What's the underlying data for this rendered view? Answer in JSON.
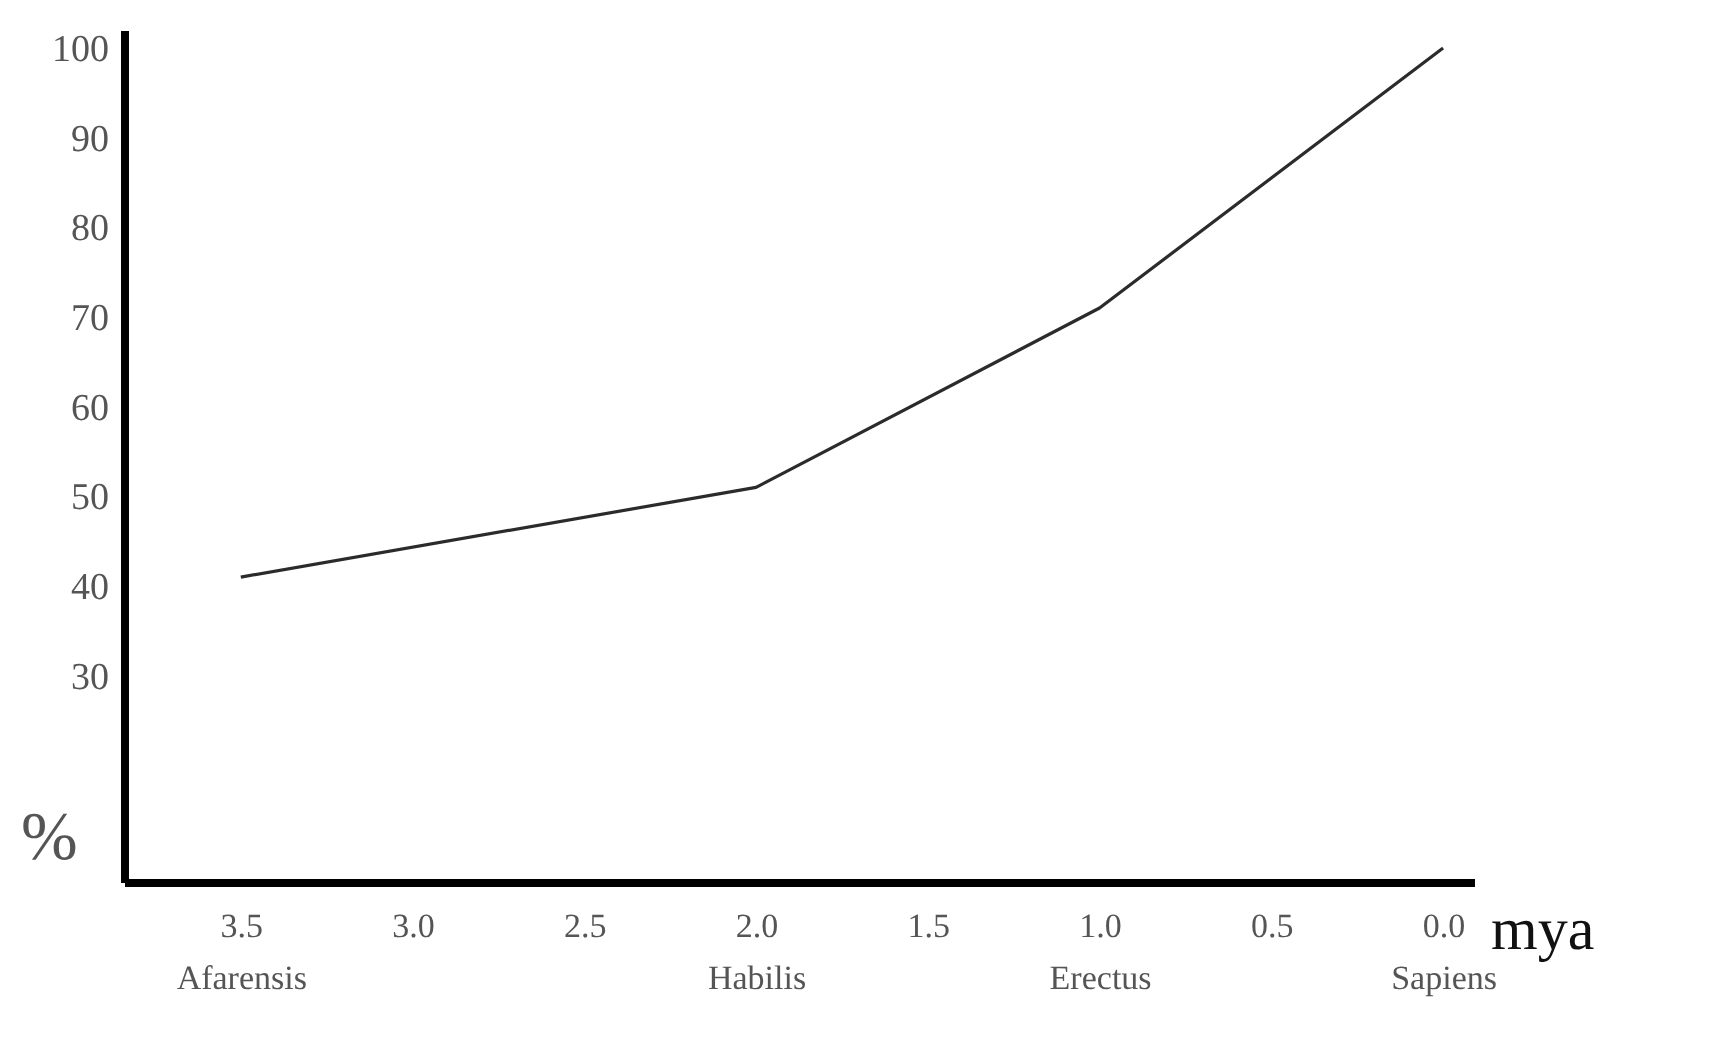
{
  "chart_data": {
    "type": "line",
    "xlabel": "mya",
    "ylabel": "%",
    "x": [
      3.5,
      2.0,
      1.0,
      0.0
    ],
    "series": [
      {
        "color": "#2b2b2b",
        "values": [
          41,
          51,
          71,
          100
        ]
      }
    ],
    "xlim": [
      3.84,
      -0.09
    ],
    "xticks": [
      {
        "value": 3.5,
        "label": "3.5\nAfarensis"
      },
      {
        "value": 3.0,
        "label": "3.0"
      },
      2.5,
      {
        "value": 2.0,
        "label": "2.0\nHabilis"
      },
      1.5,
      {
        "value": 1.0,
        "label": "1.0\nErectus"
      },
      0.5,
      {
        "value": 0.0,
        "label": "0.0\nSapiens"
      }
    ],
    "ylim": [
      7,
      102
    ],
    "yticks": [
      30,
      40,
      50,
      60,
      70,
      80,
      90,
      100
    ],
    "grid": false,
    "marker": "none",
    "line_style": "solid"
  }
}
